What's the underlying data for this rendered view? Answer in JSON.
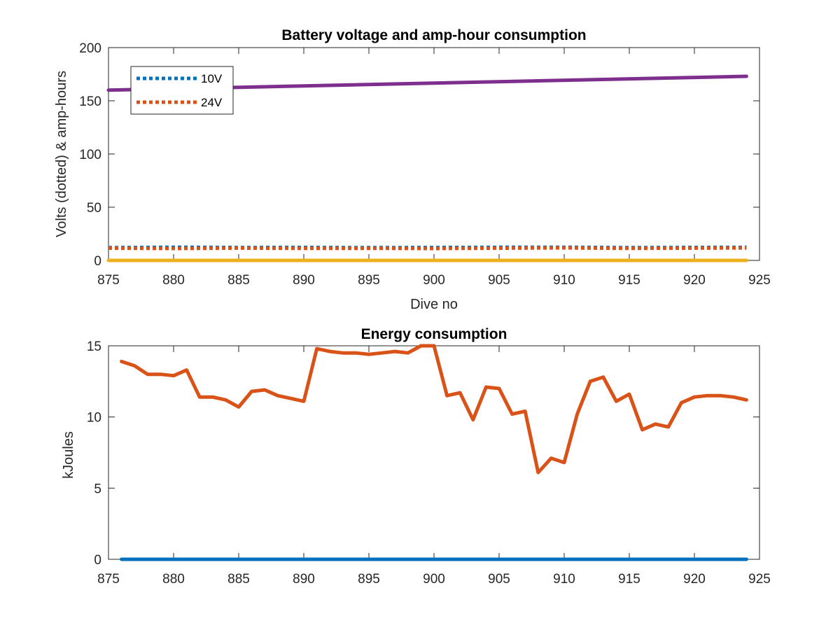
{
  "chart_data": [
    {
      "type": "line",
      "title": "Battery voltage and amp-hour consumption",
      "xlabel": "Dive no",
      "ylabel": "Volts (dotted) & amp-hours",
      "xlim": [
        875,
        925
      ],
      "ylim": [
        0,
        200
      ],
      "xticks": [
        "875",
        "880",
        "885",
        "890",
        "895",
        "900",
        "905",
        "910",
        "915",
        "920",
        "925"
      ],
      "yticks": [
        "0",
        "50",
        "100",
        "150",
        "200"
      ],
      "grid": false,
      "legend": {
        "placement": "top-left",
        "entries": [
          "10V",
          "24V"
        ]
      },
      "series": [
        {
          "name": "10V",
          "style": "dotted",
          "color": "#0072BD",
          "x": [
            875,
            880,
            885,
            890,
            895,
            900,
            905,
            910,
            915,
            920,
            924
          ],
          "y": [
            12.0,
            12.4,
            12.1,
            12.2,
            12.0,
            12.1,
            12.3,
            12.4,
            12.0,
            12.2,
            12.3
          ]
        },
        {
          "name": "24V",
          "style": "dotted",
          "color": "#D95319",
          "x": [
            875,
            880,
            885,
            890,
            895,
            900,
            905,
            910,
            915,
            920,
            924
          ],
          "y": [
            11.5,
            11.2,
            11.6,
            11.3,
            11.4,
            11.2,
            11.5,
            11.8,
            11.3,
            11.6,
            11.7
          ]
        },
        {
          "style": "solid",
          "color": "#7E2F8E",
          "x": [
            875,
            924
          ],
          "y": [
            160,
            173
          ]
        },
        {
          "style": "solid",
          "color": "#EDB120",
          "x": [
            875,
            924
          ],
          "y": [
            0,
            0
          ]
        }
      ]
    },
    {
      "type": "line",
      "title": "Energy consumption",
      "xlabel": "",
      "ylabel": "kJoules",
      "xlim": [
        875,
        925
      ],
      "ylim": [
        0,
        15
      ],
      "xticks": [
        "875",
        "880",
        "885",
        "890",
        "895",
        "900",
        "905",
        "910",
        "915",
        "920",
        "925"
      ],
      "yticks": [
        "0",
        "5",
        "10",
        "15"
      ],
      "grid": false,
      "series": [
        {
          "style": "solid",
          "color": "#D95319",
          "x": [
            876,
            877,
            878,
            879,
            880,
            881,
            882,
            883,
            884,
            885,
            886,
            887,
            888,
            889,
            890,
            891,
            892,
            893,
            894,
            895,
            896,
            897,
            898,
            899,
            900,
            901,
            902,
            903,
            904,
            905,
            906,
            907,
            908,
            909,
            910,
            911,
            912,
            913,
            914,
            915,
            916,
            917,
            918,
            919,
            920,
            921,
            922,
            923,
            924
          ],
          "y": [
            13.9,
            13.6,
            13.0,
            13.0,
            12.9,
            13.3,
            11.4,
            11.4,
            11.2,
            10.7,
            11.8,
            11.9,
            11.5,
            11.3,
            11.1,
            14.8,
            14.6,
            14.5,
            14.5,
            14.4,
            14.5,
            14.6,
            14.5,
            15.0,
            15.0,
            11.5,
            11.7,
            9.8,
            12.1,
            12.0,
            10.2,
            10.4,
            6.1,
            7.1,
            6.8,
            10.2,
            12.5,
            12.8,
            11.1,
            11.6,
            9.1,
            9.5,
            9.3,
            11.0,
            11.4,
            11.5,
            11.5,
            11.4,
            11.2
          ]
        },
        {
          "style": "solid",
          "color": "#0072BD",
          "x": [
            876,
            924
          ],
          "y": [
            0,
            0
          ]
        }
      ]
    }
  ]
}
